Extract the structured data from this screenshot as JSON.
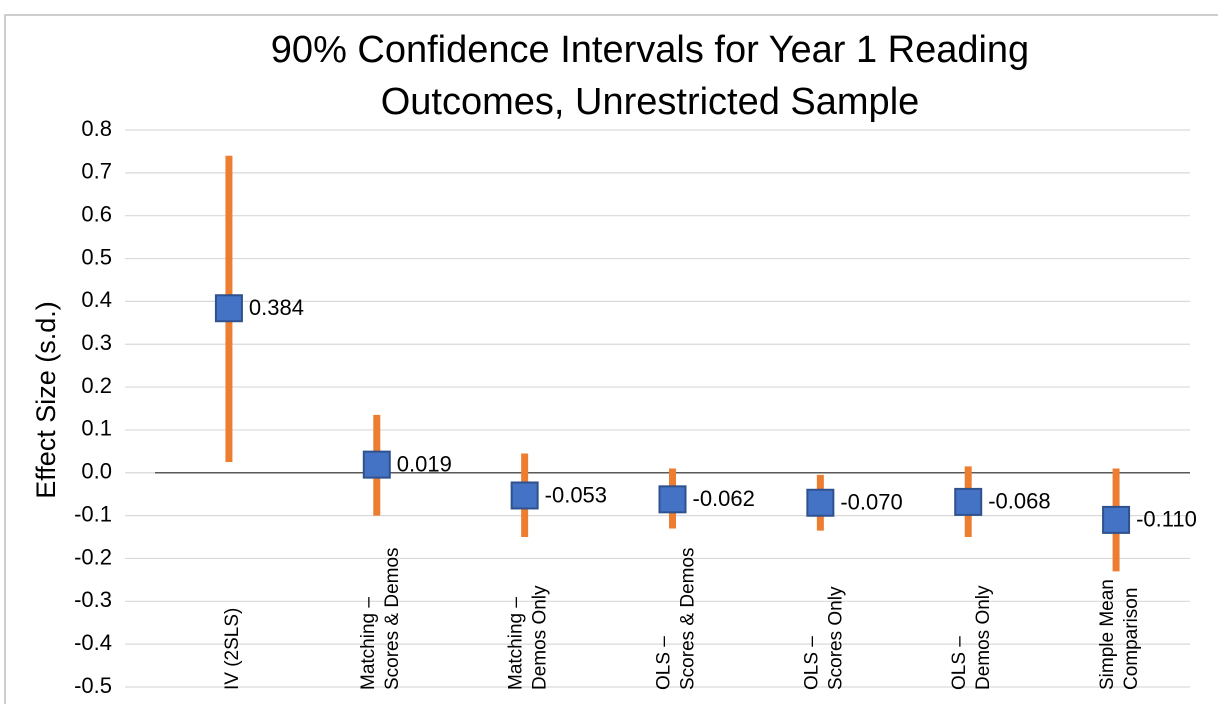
{
  "chart_data": {
    "type": "errorbar",
    "title": [
      "90% Confidence Intervals for Year 1 Reading",
      "Outcomes, Unrestricted Sample"
    ],
    "y_label": "Effect Size (s.d.)",
    "categories": [
      [
        "IV (2SLS)"
      ],
      [
        "Matching –",
        "Scores & Demos"
      ],
      [
        "Matching –",
        "Demos Only"
      ],
      [
        "OLS –",
        "Scores & Demos"
      ],
      [
        "OLS –",
        "Scores Only"
      ],
      [
        "OLS –",
        "Demos Only"
      ],
      [
        "Simple Mean",
        "Comparison"
      ]
    ],
    "values": [
      0.384,
      0.019,
      -0.053,
      -0.062,
      -0.07,
      -0.068,
      -0.11
    ],
    "value_labels": [
      "0.384",
      "0.019",
      "-0.053",
      "-0.062",
      "-0.070",
      "-0.068",
      "-0.110"
    ],
    "ci_low": [
      0.025,
      -0.1,
      -0.15,
      -0.13,
      -0.135,
      -0.15,
      -0.23
    ],
    "ci_high": [
      0.74,
      0.135,
      0.045,
      0.01,
      -0.005,
      0.015,
      0.01
    ],
    "color": "#4472c4",
    "ci_color": "#ed7d31",
    "ylim": [
      -0.5,
      0.8
    ],
    "yticks": [
      -0.5,
      -0.4,
      -0.3,
      -0.2,
      -0.1,
      {
        "value": 0,
        "label": "0.0"
      },
      0.1,
      0.2,
      0.3,
      0.4,
      0.5,
      0.6,
      0.7,
      0.8
    ],
    "grid": true
  }
}
